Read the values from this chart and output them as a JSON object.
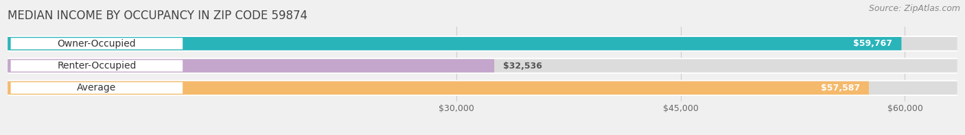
{
  "title": "MEDIAN INCOME BY OCCUPANCY IN ZIP CODE 59874",
  "source_text": "Source: ZipAtlas.com",
  "categories": [
    "Owner-Occupied",
    "Renter-Occupied",
    "Average"
  ],
  "values": [
    59767,
    32536,
    57587
  ],
  "bar_colors": [
    "#29b4ba",
    "#c4a5cc",
    "#f5b96b"
  ],
  "bar_labels": [
    "$59,767",
    "$32,536",
    "$57,587"
  ],
  "x_ticks": [
    30000,
    45000,
    60000
  ],
  "x_tick_labels": [
    "$30,000",
    "$45,000",
    "$60,000"
  ],
  "x_min": 0,
  "x_max": 63500,
  "background_color": "#f0f0f0",
  "bar_bg_color": "#dcdcdc",
  "label_bg_color": "#ffffff",
  "title_fontsize": 12,
  "source_fontsize": 9,
  "bar_label_fontsize": 9,
  "cat_label_fontsize": 10,
  "tick_fontsize": 9,
  "bar_height": 0.6,
  "bar_gap": 1.0,
  "rounding": 0.3
}
